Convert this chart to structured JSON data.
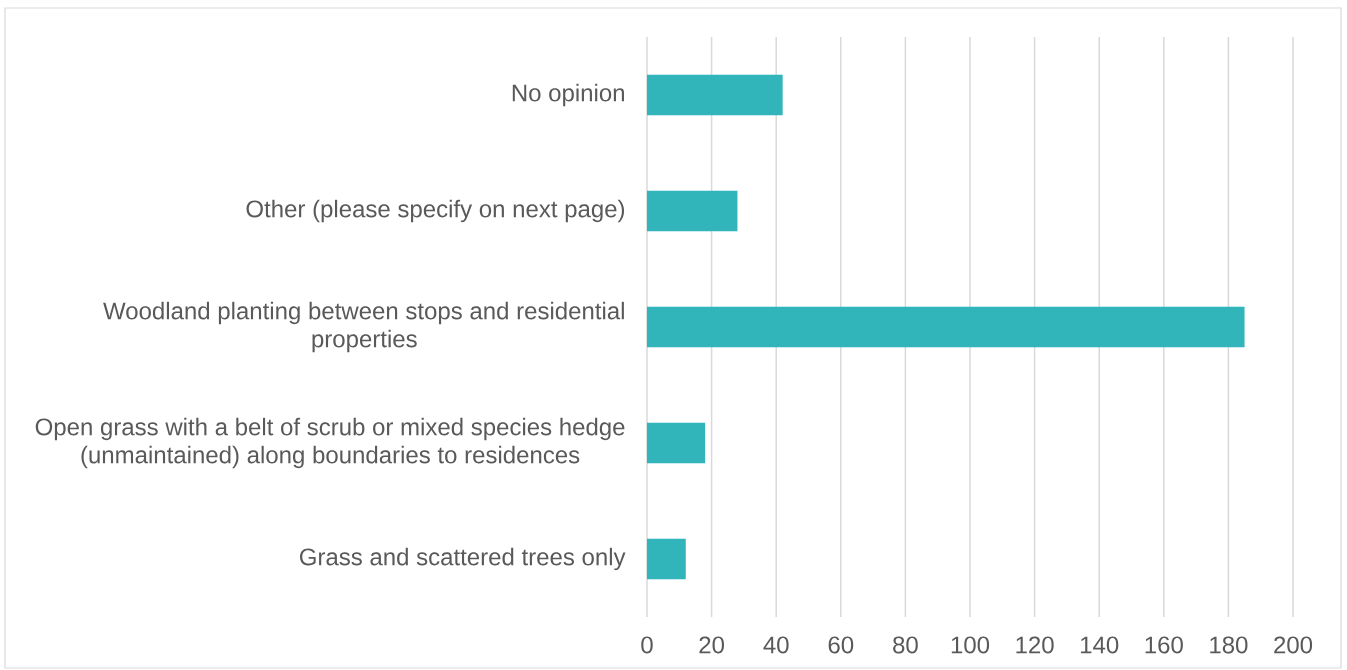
{
  "chart_data": {
    "type": "bar",
    "orientation": "horizontal",
    "categories": [
      "No opinion",
      "Other (please specify on next page)",
      "Woodland planting between stops and residential properties",
      "Open grass with a belt of scrub or mixed species hedge (unmaintained) along boundaries to residences",
      "Grass and scattered trees only"
    ],
    "values": [
      42,
      28,
      185,
      18,
      12
    ],
    "color": "#31b5ba",
    "xlim": [
      0,
      200
    ],
    "xticks": [
      0,
      20,
      40,
      60,
      80,
      100,
      120,
      140,
      160,
      180,
      200
    ],
    "grid": "x"
  }
}
